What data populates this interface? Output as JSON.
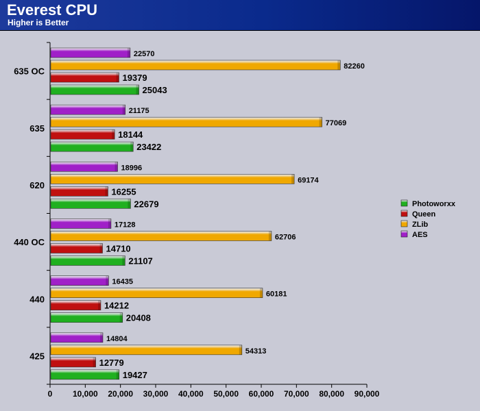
{
  "chart_data": {
    "type": "bar",
    "orientation": "horizontal",
    "title": "Everest CPU",
    "subtitle": "Higher is Better",
    "categories": [
      "635 OC",
      "635",
      "620",
      "440 OC",
      "440",
      "425"
    ],
    "series": [
      {
        "name": "AES",
        "color": "#a020c8",
        "values": [
          22570,
          21175,
          18996,
          17128,
          16435,
          14804
        ]
      },
      {
        "name": "ZLib",
        "color": "#f0a800",
        "values": [
          82260,
          77069,
          69174,
          62706,
          60181,
          54313
        ]
      },
      {
        "name": "Queen",
        "color": "#c01010",
        "values": [
          19379,
          18144,
          16255,
          14710,
          14212,
          12779
        ]
      },
      {
        "name": "Photoworxx",
        "color": "#20b020",
        "values": [
          25043,
          23422,
          22679,
          21107,
          20408,
          19427
        ]
      }
    ],
    "xlim": [
      0,
      90000
    ],
    "xticks": [
      "0",
      "10,000",
      "20,000",
      "30,000",
      "40,000",
      "50,000",
      "60,000",
      "70,000",
      "80,000",
      "90,000"
    ],
    "legend": [
      "Photoworxx",
      "Queen",
      "ZLib",
      "AES"
    ],
    "legend_position": "right",
    "grid": false
  }
}
